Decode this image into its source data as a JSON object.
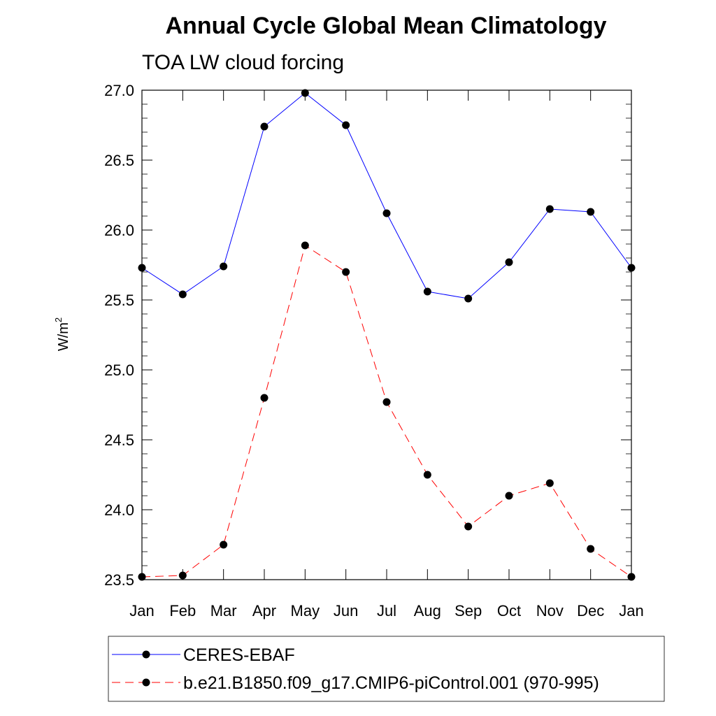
{
  "chart_data": {
    "type": "line",
    "title": "Annual Cycle Global Mean Climatology",
    "subtitle": "TOA LW cloud forcing",
    "ylabel": "W/m",
    "ylabel_superscript": "2",
    "xlabel": "",
    "categories": [
      "Jan",
      "Feb",
      "Mar",
      "Apr",
      "May",
      "Jun",
      "Jul",
      "Aug",
      "Sep",
      "Oct",
      "Nov",
      "Dec",
      "Jan"
    ],
    "ylim": [
      23.5,
      27.0
    ],
    "yticks": [
      "23.5",
      "24.0",
      "24.5",
      "25.0",
      "25.5",
      "26.0",
      "26.5",
      "27.0"
    ],
    "grid": false,
    "legend_position": "bottom",
    "series": [
      {
        "name": "CERES-EBAF",
        "color": "#0000ff",
        "line_style": "solid",
        "marker": "filled-circle",
        "values": [
          25.73,
          25.54,
          25.74,
          26.74,
          26.98,
          26.75,
          26.12,
          25.56,
          25.51,
          25.77,
          26.15,
          26.13,
          25.73
        ]
      },
      {
        "name": "b.e21.B1850.f09_g17.CMIP6-piControl.001 (970-995)",
        "color": "#ff0000",
        "line_style": "dashed",
        "marker": "filled-circle",
        "values": [
          23.52,
          23.53,
          23.75,
          24.8,
          25.89,
          25.7,
          24.77,
          24.25,
          23.88,
          24.1,
          24.19,
          23.72,
          23.52
        ]
      }
    ]
  }
}
